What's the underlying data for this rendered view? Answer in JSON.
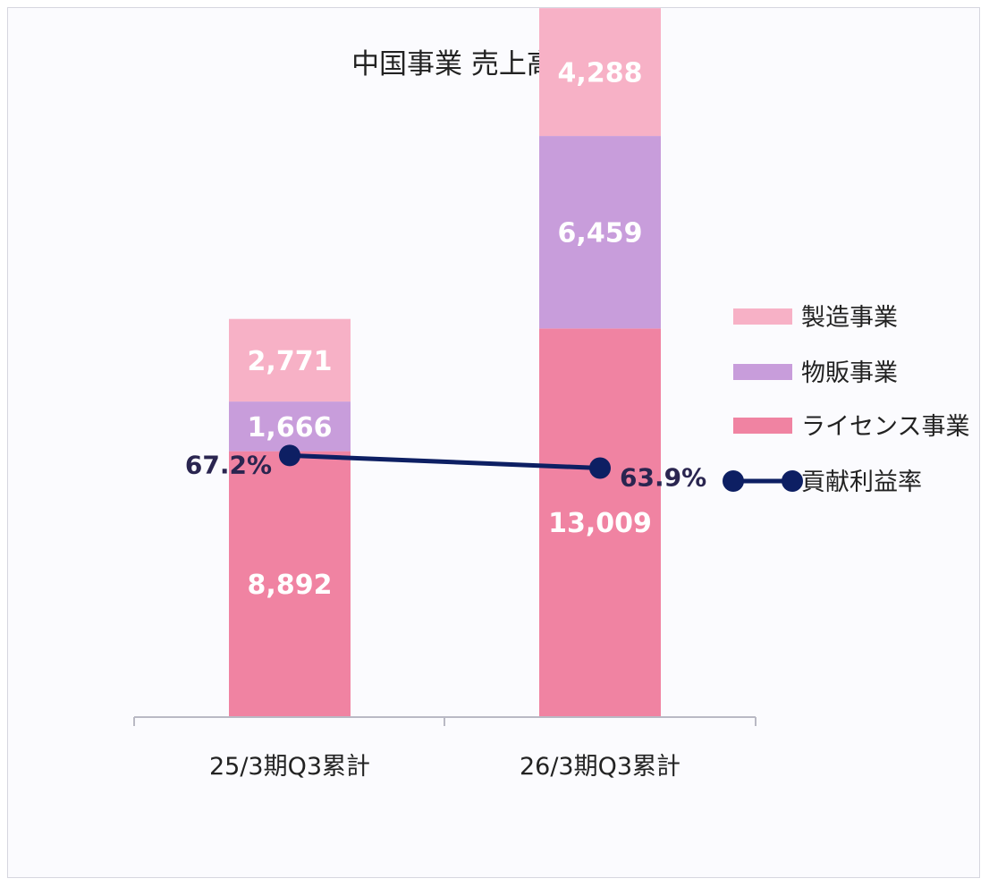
{
  "chart_data": {
    "type": "bar",
    "stacked": true,
    "title": "中国事業 売上高構成比",
    "categories": [
      "25/3期Q3累計",
      "26/3期Q3累計"
    ],
    "series": [
      {
        "name": "ライセンス事業",
        "values": [
          8892,
          13009
        ],
        "labels": [
          "8,892",
          "13,009"
        ],
        "color": "#f083a2"
      },
      {
        "name": "物販事業",
        "values": [
          1666,
          6459
        ],
        "labels": [
          "1,666",
          "6,459"
        ],
        "color": "#c89ddb"
      },
      {
        "name": "製造事業",
        "values": [
          2771,
          4288
        ],
        "labels": [
          "2,771",
          "4,288"
        ],
        "color": "#f7b1c6"
      }
    ],
    "line_series": {
      "name": "貢献利益率",
      "values": [
        67.2,
        63.9
      ],
      "labels": [
        "67.2%",
        "63.9%"
      ],
      "color": "#0d1f63"
    },
    "legend_order": [
      "製造事業",
      "物販事業",
      "ライセンス事業",
      "貢献利益率"
    ],
    "legend_position": "right",
    "ylim": [
      0,
      24000
    ],
    "line_ylim": [
      0,
      100
    ],
    "grid": false
  }
}
